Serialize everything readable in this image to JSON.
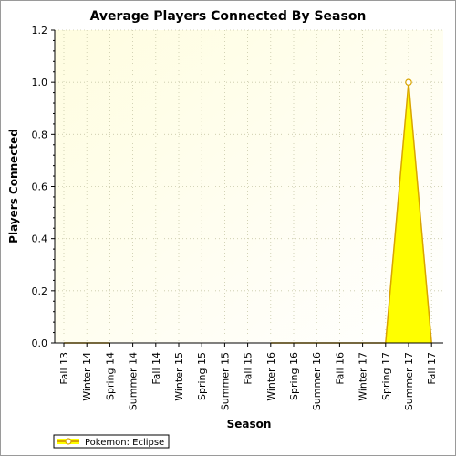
{
  "chart_data": {
    "type": "area",
    "title": "Average Players Connected By Season",
    "xlabel": "Season",
    "ylabel": "Players Connected",
    "categories": [
      "Fall 13",
      "Winter 14",
      "Spring 14",
      "Summer 14",
      "Fall 14",
      "Winter 15",
      "Spring 15",
      "Summer 15",
      "Fall 15",
      "Winter 16",
      "Spring 16",
      "Summer 16",
      "Fall 16",
      "Winter 17",
      "Spring 17",
      "Summer 17",
      "Fall 17"
    ],
    "yticks": [
      "0.0",
      "0.2",
      "0.4",
      "0.6",
      "0.8",
      "1.0",
      "1.2"
    ],
    "ylim": [
      0,
      1.2
    ],
    "grid": true,
    "legend_position": "bottom-left",
    "series": [
      {
        "name": "Pokemon: Eclipse",
        "color": "#ffff00",
        "line_color": "#d9a400",
        "values": [
          0,
          0,
          0,
          null,
          null,
          null,
          null,
          null,
          null,
          0,
          0,
          0,
          0,
          0,
          0,
          1.0,
          0
        ]
      }
    ]
  },
  "colors": {
    "plot_bg_top": "#fffde0",
    "plot_bg_bottom": "#ffffff",
    "grid": "#c8c8a8",
    "axis": "#000000",
    "marker_fill": "#ffffff",
    "marker_stroke": "#d9a400"
  }
}
